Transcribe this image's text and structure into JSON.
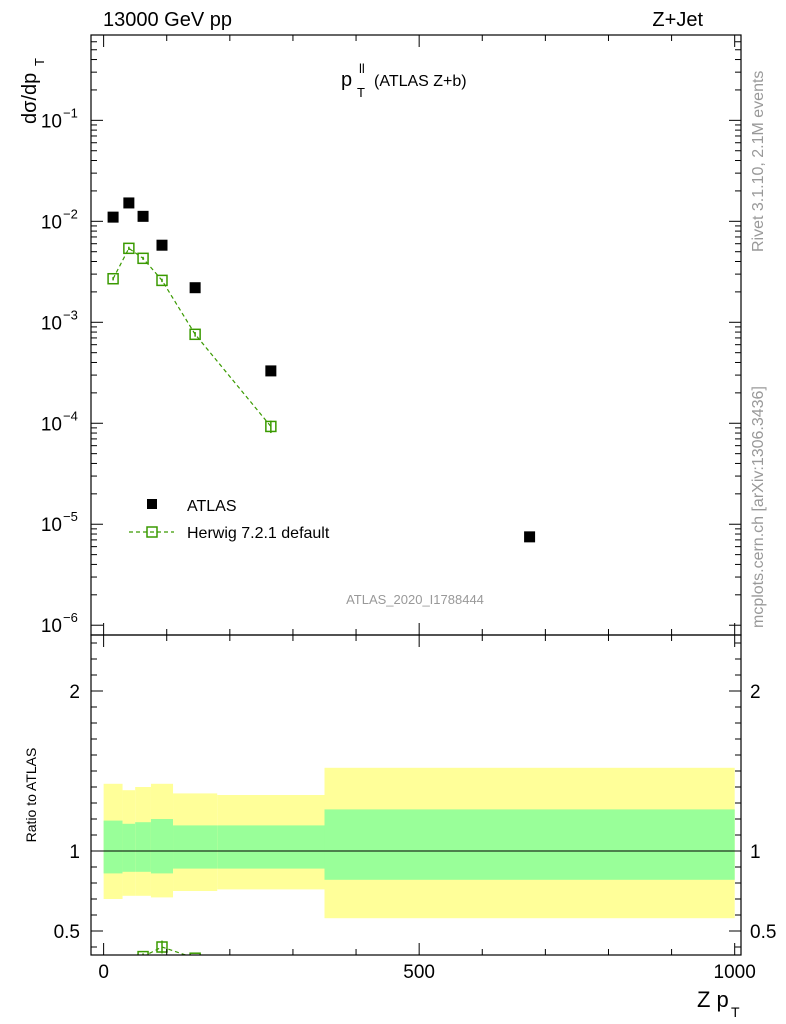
{
  "header": {
    "left": "13000 GeV pp",
    "right": "Z+Jet"
  },
  "side_texts": {
    "rivet": "Rivet 3.1.10,  2.1M events",
    "mcplots": "mcplots.cern.ch [arXiv:1306.3436]"
  },
  "chart_data": [
    {
      "type": "scatter",
      "panel": "main",
      "title_main": "p",
      "title_sup": "ll",
      "title_sub": "T",
      "title_rest": "(ATLAS Z+b)",
      "ylabel_main": "dσ/dp",
      "ylabel_sub": "T",
      "yscale": "log",
      "ylim": [
        8e-07,
        0.7
      ],
      "xlim": [
        -20,
        1010
      ],
      "yticks": [
        {
          "value": 1e-06,
          "base": "10",
          "exp": "−6"
        },
        {
          "value": 1e-05,
          "base": "10",
          "exp": "−5"
        },
        {
          "value": 0.0001,
          "base": "10",
          "exp": "−4"
        },
        {
          "value": 0.001,
          "base": "10",
          "exp": "−3"
        },
        {
          "value": 0.01,
          "base": "10",
          "exp": "−2"
        },
        {
          "value": 0.1,
          "base": "10",
          "exp": "−1"
        }
      ],
      "watermark": "ATLAS_2020_I1788444",
      "series": [
        {
          "name": "ATLAS",
          "style": "filled-square",
          "color": "#000000",
          "x": [
            15,
            40,
            62.5,
            92.5,
            145,
            265,
            675
          ],
          "y": [
            0.011,
            0.0152,
            0.0112,
            0.0058,
            0.0022,
            0.00033,
            7.5e-06
          ]
        },
        {
          "name": "Herwig 7.2.1 default",
          "style": "open-square-dashed",
          "color": "#3a9a00",
          "x": [
            15,
            40,
            62.5,
            92.5,
            145,
            265
          ],
          "y": [
            0.0027,
            0.0054,
            0.0043,
            0.0026,
            0.00076,
            9.3e-05
          ],
          "err": [
            0.0001,
            0.0002,
            0.00015,
            0.0001,
            4e-05,
            1.3e-05
          ]
        }
      ]
    },
    {
      "type": "area",
      "panel": "ratio",
      "ylabel": "Ratio to ATLAS",
      "xlabel_main": "Z p",
      "xlabel_sub": "T",
      "ylim": [
        0.35,
        2.35
      ],
      "xlim": [
        -20,
        1010
      ],
      "yticks": [
        0.5,
        1,
        2
      ],
      "ytick_labels": [
        "0.5",
        "1",
        "2"
      ],
      "xticks": [
        0,
        500,
        1000
      ],
      "xtick_labels": [
        "0",
        "500",
        "1000"
      ],
      "bins": [
        {
          "lo": 0,
          "hi": 30,
          "inner": [
            0.86,
            1.19
          ],
          "outer": [
            0.7,
            1.42
          ]
        },
        {
          "lo": 30,
          "hi": 50,
          "inner": [
            0.87,
            1.17
          ],
          "outer": [
            0.72,
            1.38
          ]
        },
        {
          "lo": 50,
          "hi": 75,
          "inner": [
            0.87,
            1.18
          ],
          "outer": [
            0.72,
            1.4
          ]
        },
        {
          "lo": 75,
          "hi": 110,
          "inner": [
            0.86,
            1.2
          ],
          "outer": [
            0.71,
            1.42
          ]
        },
        {
          "lo": 110,
          "hi": 180,
          "inner": [
            0.89,
            1.16
          ],
          "outer": [
            0.75,
            1.36
          ]
        },
        {
          "lo": 180,
          "hi": 350,
          "inner": [
            0.89,
            1.16
          ],
          "outer": [
            0.76,
            1.35
          ]
        },
        {
          "lo": 350,
          "hi": 1000,
          "inner": [
            0.82,
            1.26
          ],
          "outer": [
            0.58,
            1.52
          ]
        }
      ],
      "inner_color": "#99ff99",
      "outer_color": "#ffff99",
      "herwig_ratio": {
        "x": [
          62.5,
          92.5,
          145
        ],
        "y": [
          0.34,
          0.4,
          0.33
        ],
        "err": [
          0.02,
          0.04,
          0.02
        ]
      }
    }
  ]
}
